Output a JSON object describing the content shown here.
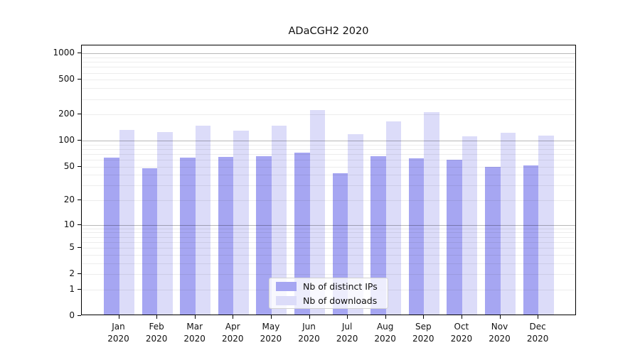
{
  "chart_data": {
    "type": "bar",
    "title": "ADaCGH2 2020",
    "x_year_label": "2020",
    "categories": [
      "Jan",
      "Feb",
      "Mar",
      "Apr",
      "May",
      "Jun",
      "Jul",
      "Aug",
      "Sep",
      "Oct",
      "Nov",
      "Dec"
    ],
    "series": [
      {
        "name": "Nb of distinct IPs",
        "color": "#a6a6f2",
        "values": [
          61,
          46,
          61,
          62,
          64,
          70,
          40,
          64,
          60,
          58,
          48,
          50
        ]
      },
      {
        "name": "Nb of downloads",
        "color": "#dcdcf9",
        "values": [
          129,
          120,
          144,
          126,
          142,
          215,
          114,
          160,
          203,
          108,
          118,
          110
        ]
      }
    ],
    "yscale": "log10(1+v)",
    "yticks": [
      0,
      1,
      2,
      5,
      10,
      20,
      50,
      100,
      200,
      500,
      1000
    ],
    "gridlines": {
      "light": [
        1,
        2,
        5,
        20,
        50,
        200,
        500,
        3,
        4,
        6,
        7,
        8,
        9,
        30,
        40,
        60,
        70,
        80,
        90,
        300,
        400,
        600,
        700,
        800,
        900
      ],
      "dark": [
        10,
        100,
        1000
      ]
    },
    "ylim": [
      0,
      1000
    ],
    "legend_position": "lower center",
    "legend": [
      "Nb of distinct IPs",
      "Nb of downloads"
    ]
  }
}
